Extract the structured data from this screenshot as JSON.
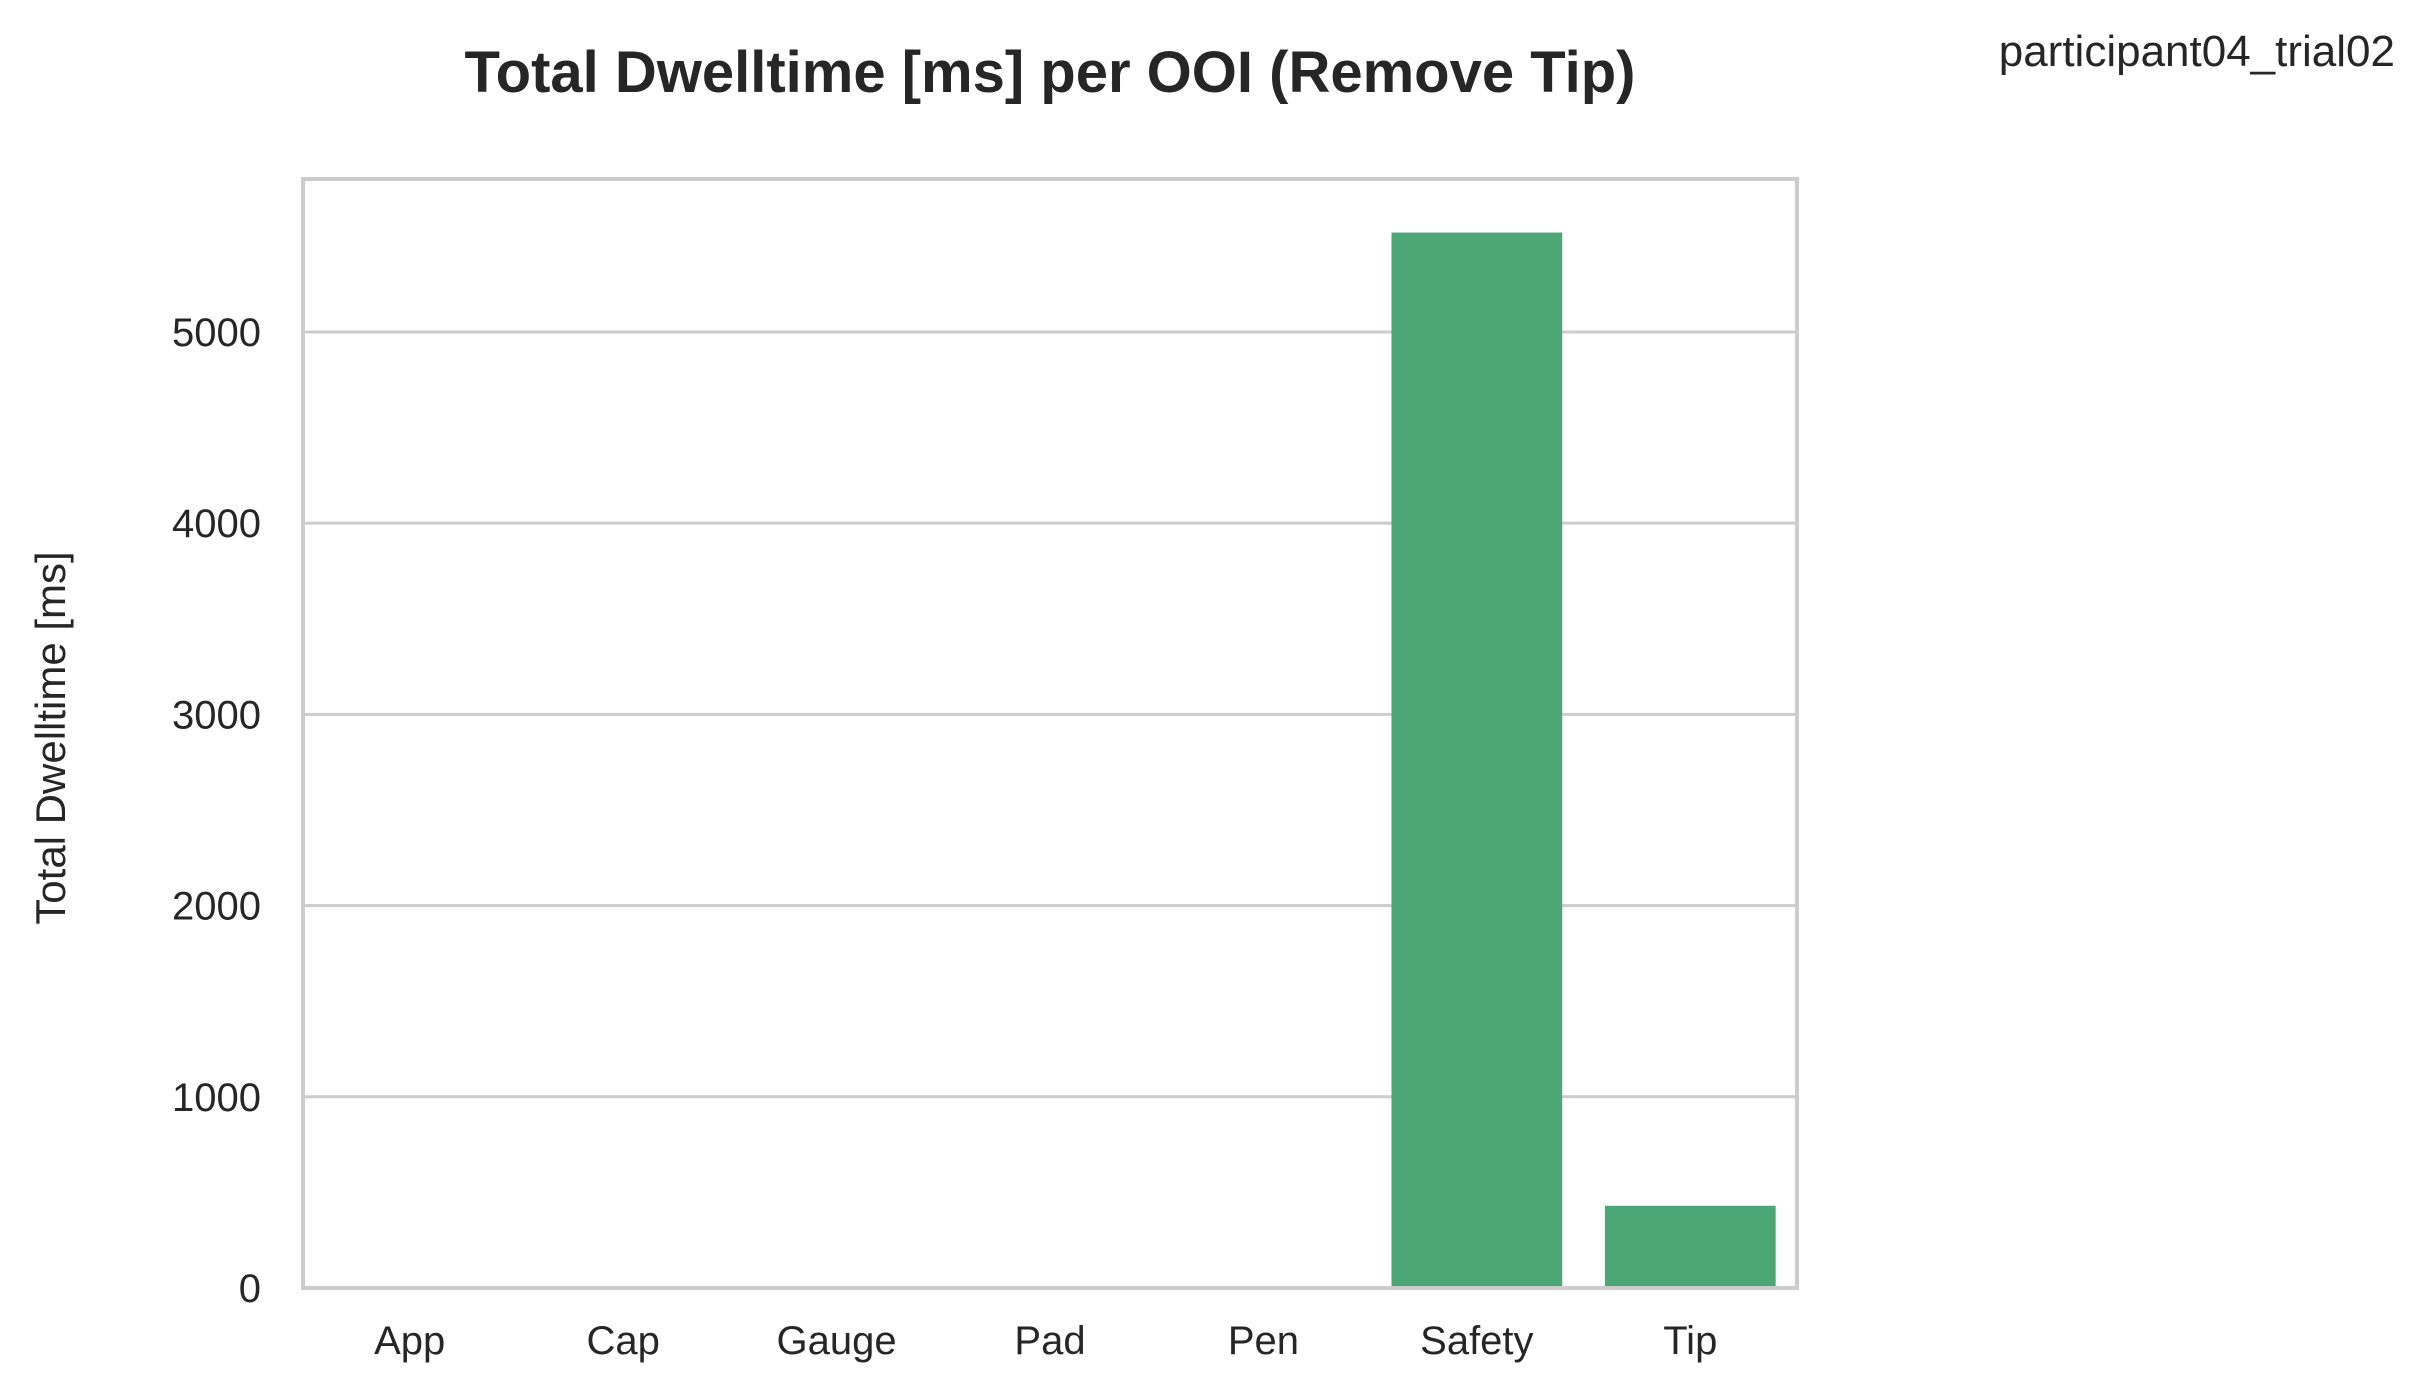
{
  "chart_data": {
    "type": "bar",
    "title": "Total Dwelltime [ms] per OOI (Remove Tip)",
    "annotation": "participant04_trial02",
    "xlabel": "",
    "ylabel": "Total Dwelltime [ms]",
    "categories": [
      "App",
      "Cap",
      "Gauge",
      "Pad",
      "Pen",
      "Safety",
      "Tip"
    ],
    "values": [
      0,
      0,
      0,
      0,
      0,
      5520,
      430
    ],
    "ylim": [
      0,
      5800
    ],
    "yticks": [
      0,
      1000,
      2000,
      3000,
      4000,
      5000
    ],
    "ytick_labels": [
      "0",
      "1000",
      "2000",
      "3000",
      "4000",
      "5000"
    ],
    "grid": "horizontal",
    "colors": {
      "bar": "#4ca675",
      "grid": "#cccccc",
      "frame": "#cccccc",
      "text": "#262626"
    }
  }
}
